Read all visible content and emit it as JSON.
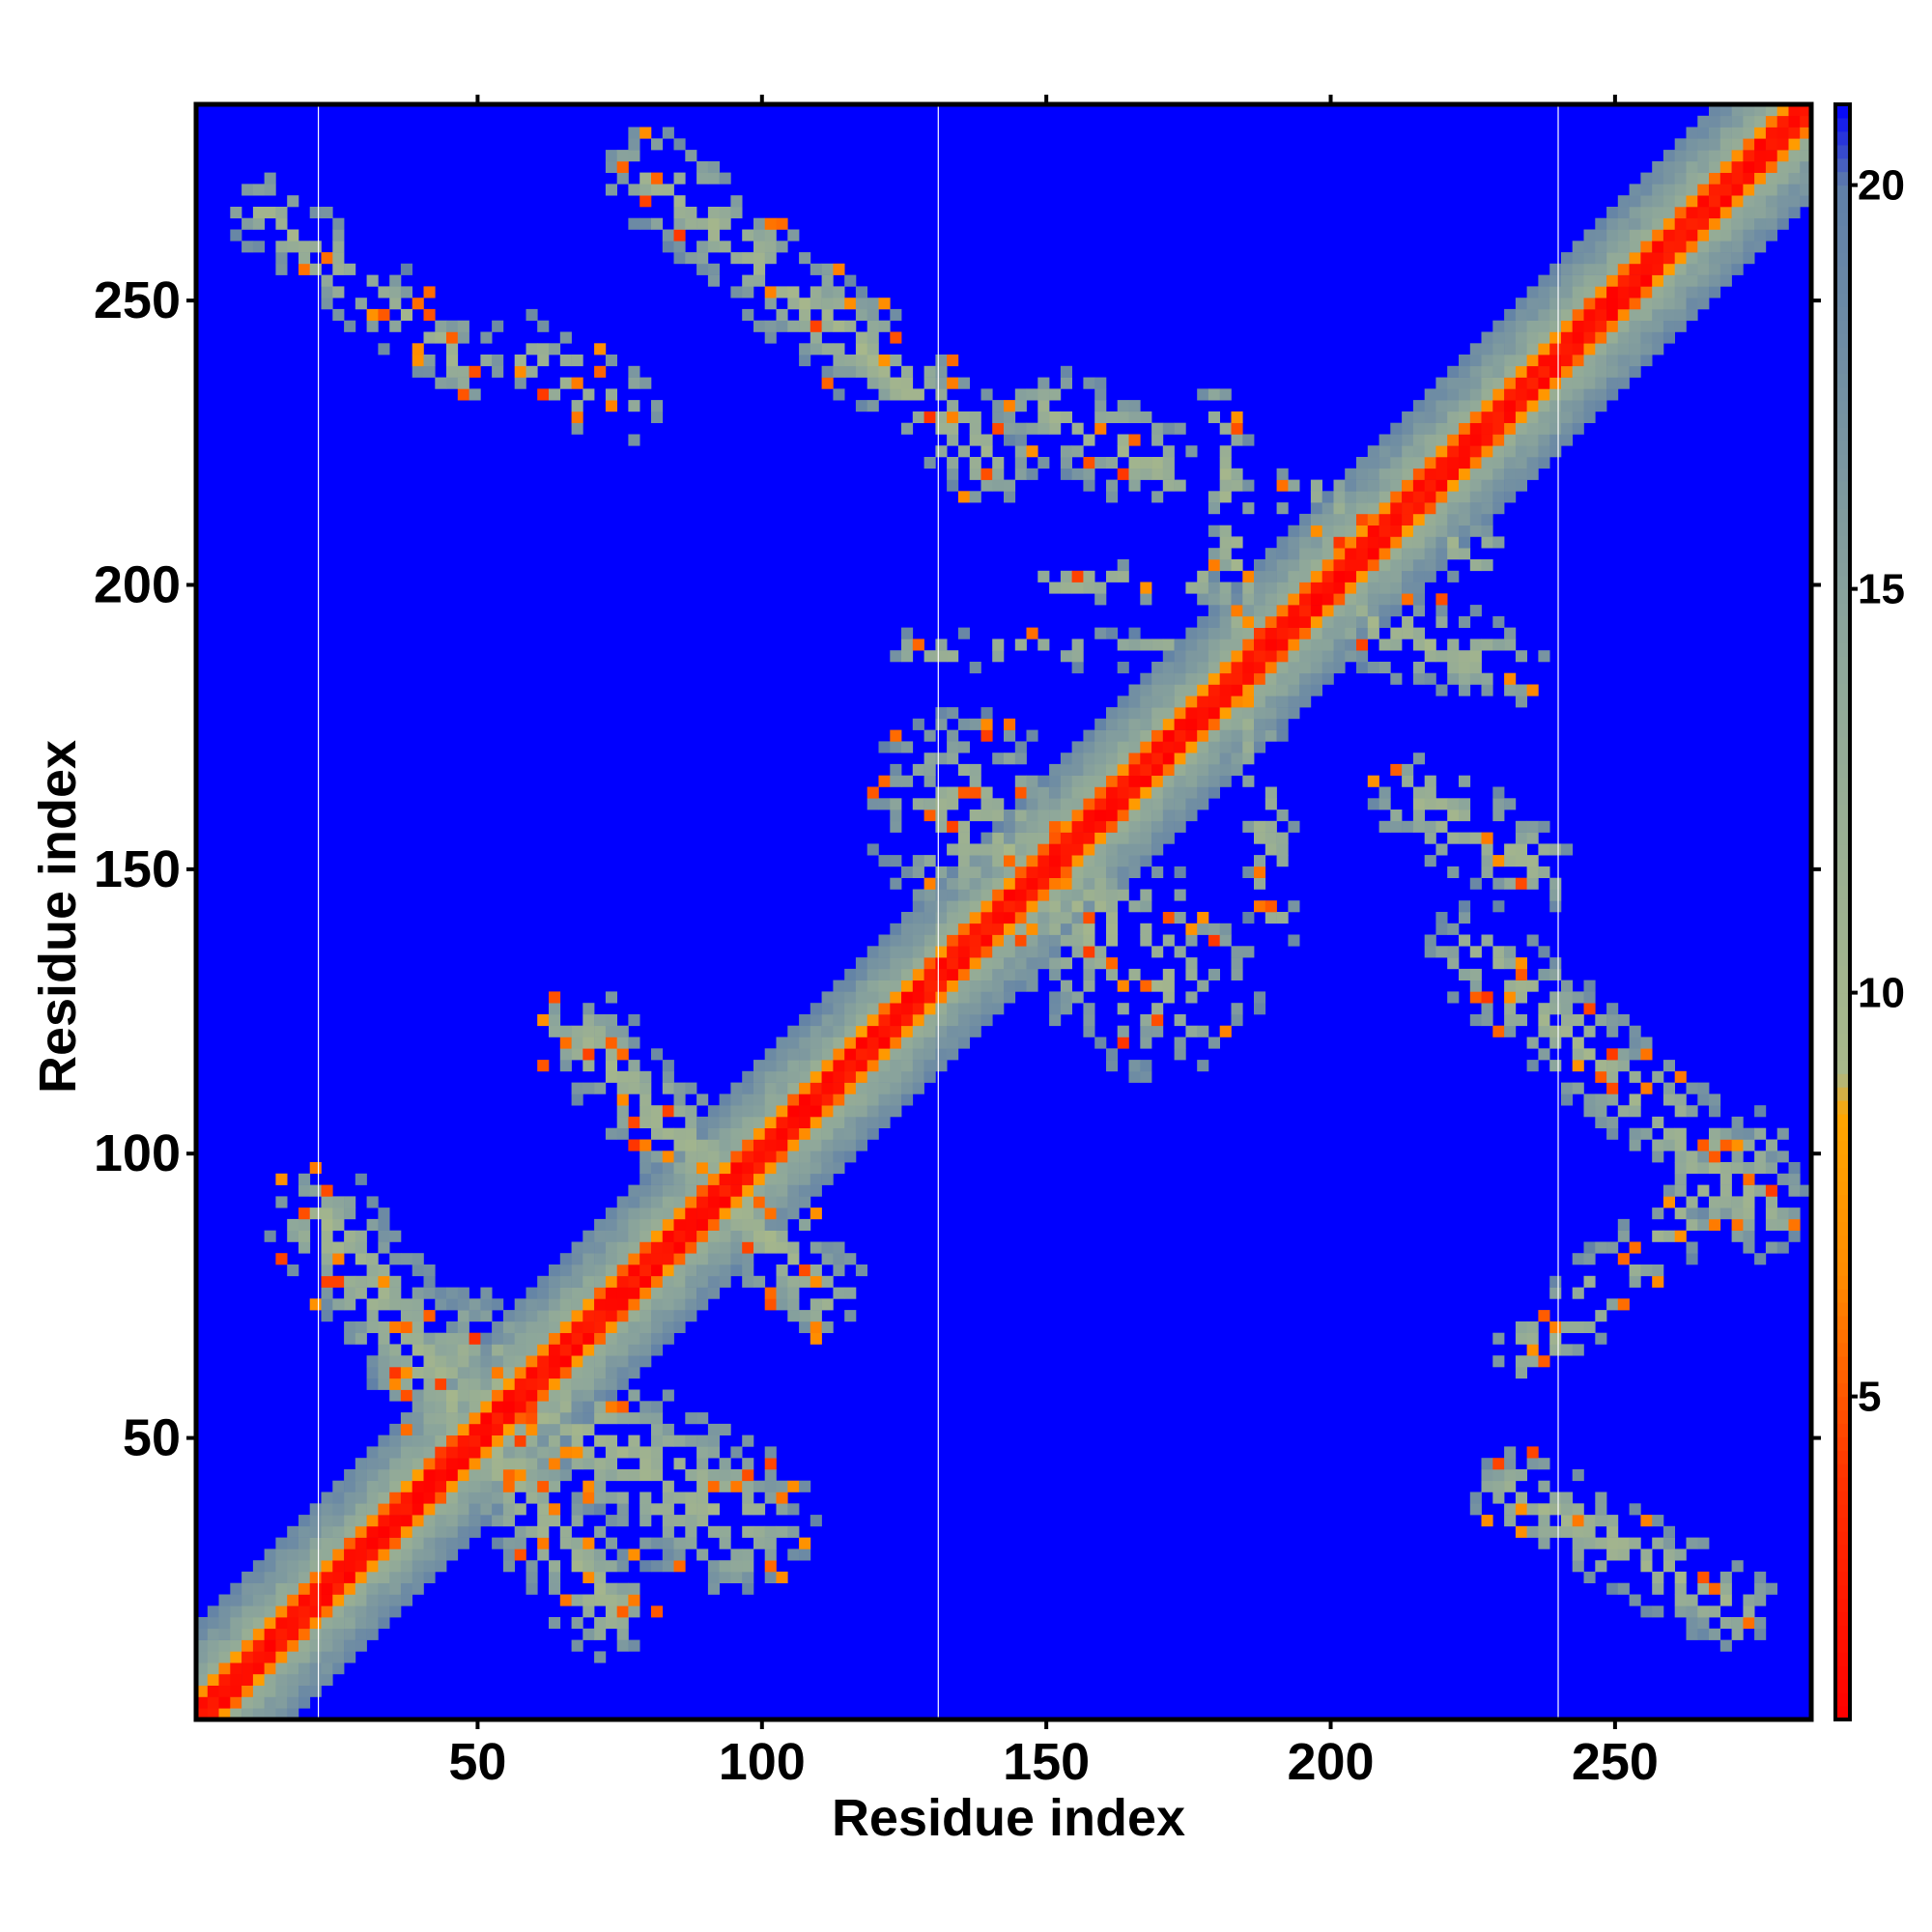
{
  "chart_data": {
    "type": "heatmap",
    "title": "",
    "xlabel": "Residue index",
    "ylabel": "Residue index",
    "xlim": [
      1,
      284
    ],
    "ylim": [
      1,
      284
    ],
    "xticks": [
      50,
      100,
      150,
      200,
      250
    ],
    "yticks": [
      50,
      100,
      150,
      200,
      250
    ],
    "colorbar": {
      "ticks": [
        5,
        10,
        15,
        20
      ],
      "range": [
        1,
        21
      ],
      "stops": [
        {
          "value": 1,
          "color": "#ff0000"
        },
        {
          "value": 4,
          "color": "#ff3300"
        },
        {
          "value": 6.5,
          "color": "#ff8c00"
        },
        {
          "value": 8.5,
          "color": "#ffa500"
        },
        {
          "value": 9,
          "color": "#a8b88a"
        },
        {
          "value": 14,
          "color": "#8fa89a"
        },
        {
          "value": 20,
          "color": "#5f7fa8"
        },
        {
          "value": 21,
          "color": "#0000ff"
        }
      ]
    },
    "background_value": 21,
    "background_color": "#0000ff",
    "vertical_reference_lines_x": [
      22,
      131,
      240
    ],
    "contact_regions": [
      {
        "from": [
          1,
          1
        ],
        "to": [
          284,
          284
        ],
        "width": 12,
        "density": 1.0
      },
      {
        "from": [
          22,
          88
        ],
        "to": [
          72,
          20
        ],
        "width": 10,
        "density": 0.85
      },
      {
        "from": [
          48,
          62
        ],
        "to": [
          95,
          35
        ],
        "width": 14,
        "density": 0.7
      },
      {
        "from": [
          68,
          120
        ],
        "to": [
          110,
          75
        ],
        "width": 9,
        "density": 0.75
      },
      {
        "from": [
          12,
          265
        ],
        "to": [
          48,
          238
        ],
        "width": 7,
        "density": 0.7
      },
      {
        "from": [
          80,
          272
        ],
        "to": [
          140,
          222
        ],
        "width": 9,
        "density": 0.75
      },
      {
        "from": [
          58,
          240
        ],
        "to": [
          75,
          230
        ],
        "width": 8,
        "density": 0.35
      },
      {
        "from": [
          225,
          135
        ],
        "to": [
          275,
          90
        ],
        "width": 9,
        "density": 0.75
      },
      {
        "from": [
          232,
          40
        ],
        "to": [
          270,
          20
        ],
        "width": 8,
        "density": 0.75
      },
      {
        "from": [
          235,
          65
        ],
        "to": [
          275,
          100
        ],
        "width": 7,
        "density": 0.45
      },
      {
        "from": [
          135,
          160
        ],
        "to": [
          170,
          130
        ],
        "width": 18,
        "density": 0.55
      },
      {
        "from": [
          150,
          230
        ],
        "to": [
          170,
          220
        ],
        "width": 9,
        "density": 0.6
      },
      {
        "from": [
          200,
          195
        ],
        "to": [
          230,
          185
        ],
        "width": 8,
        "density": 0.6
      },
      {
        "from": [
          215,
          162
        ],
        "to": [
          235,
          150
        ],
        "width": 9,
        "density": 0.6
      },
      {
        "from": [
          180,
          230
        ],
        "to": [
          190,
          140
        ],
        "width": 5,
        "density": 0.5
      },
      {
        "from": [
          125,
          188
        ],
        "to": [
          175,
          188
        ],
        "width": 3,
        "density": 0.55
      },
      {
        "from": [
          150,
          200
        ],
        "to": [
          180,
          200
        ],
        "width": 4,
        "density": 0.45
      },
      {
        "from": [
          195,
          215
        ],
        "to": [
          225,
          205
        ],
        "width": 6,
        "density": 0.5
      }
    ]
  }
}
